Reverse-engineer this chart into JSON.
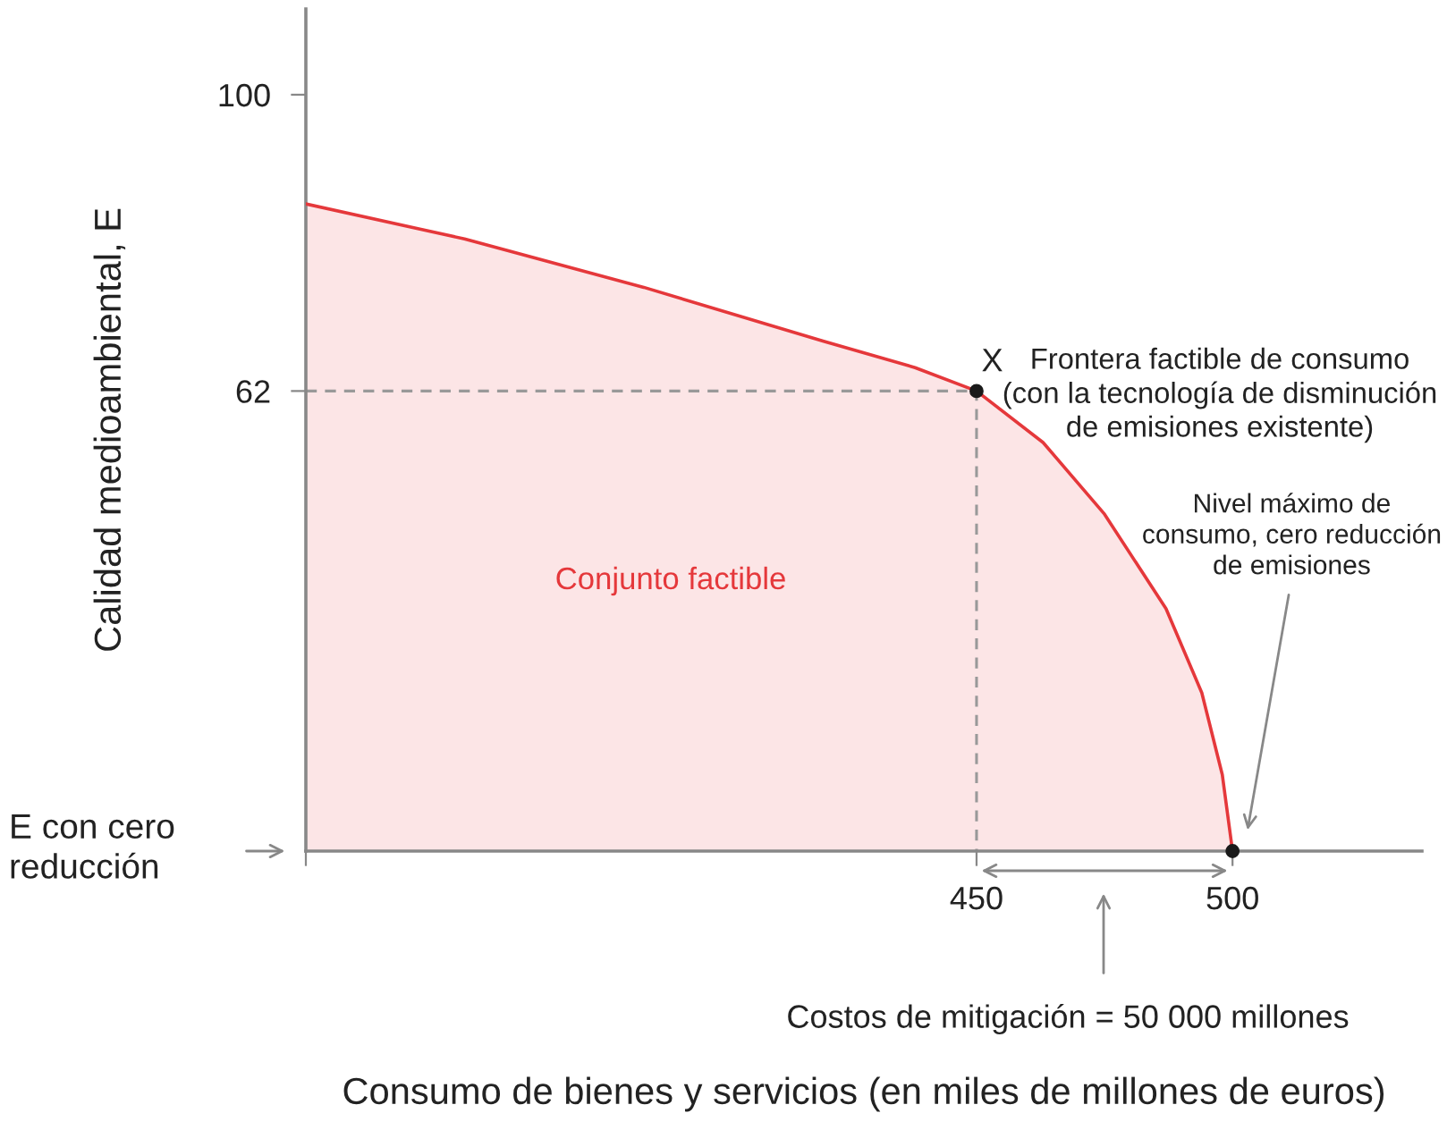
{
  "chart_data": {
    "type": "area",
    "xlabel": "Consumo de bienes y servicios (en miles de millones de euros)",
    "ylabel": "Calidad medioambiental, E",
    "series": [
      {
        "color": "#e5383b",
        "x": [
          319,
          350,
          385,
          420,
          438,
          450,
          463,
          475,
          487,
          494,
          498,
          500
        ],
        "values": [
          86,
          81.5,
          75.3,
          68.4,
          65,
          62,
          55.4,
          46.2,
          34.1,
          23.3,
          12.8,
          3
        ]
      },
      {
        "type": "line",
        "color": "#999999",
        "line_style": "dashed",
        "x": [
          319,
          450,
          450
        ],
        "values": [
          62,
          62,
          3
        ]
      },
      {
        "type": "scatter",
        "color": "#1a1a1a",
        "marker": "circle",
        "x": [
          450,
          500
        ],
        "values": [
          62,
          3
        ]
      }
    ],
    "xlim": [
      319,
      537
    ],
    "ylim": [
      3,
      111
    ],
    "xticks": [
      {
        "value": 319,
        "label": null
      },
      450,
      500
    ],
    "yticks": [
      62,
      100
    ],
    "grid": false,
    "legend": false,
    "annotations": [
      {
        "text": "X",
        "x": 450,
        "y": 62
      },
      "Frontera factible de consumo\n(con la tecnología de disminución\nde emisiones existente)",
      "Nivel máximo de\nconsumo, cero reducción\nde emisiones",
      "Conjunto factible",
      "E con cero\nreducción",
      "Costos de mitigación = 50 000 millones"
    ]
  }
}
